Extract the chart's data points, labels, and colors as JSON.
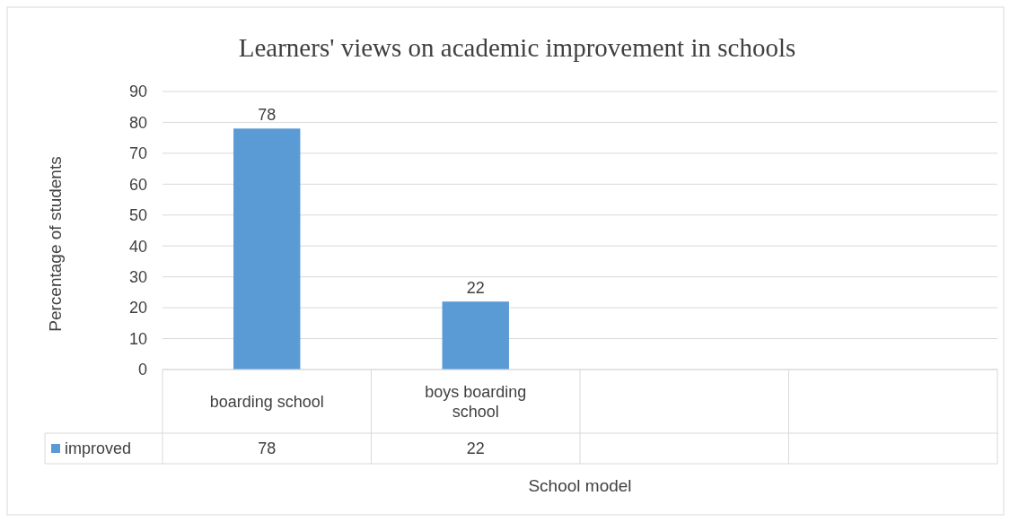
{
  "chart_data": {
    "type": "bar",
    "title": "Learners' views on academic improvement in schools",
    "xlabel": "School model",
    "ylabel": "Percentage of students",
    "categories": [
      "boarding school",
      "boys boarding school",
      null,
      null
    ],
    "series": [
      {
        "name": "improved",
        "color": "#5b9bd5",
        "values": [
          78,
          22,
          null,
          null
        ],
        "value_labels": [
          "78",
          "22",
          null,
          null
        ]
      }
    ],
    "ylim": [
      0,
      90
    ],
    "yticks": [
      0,
      10,
      20,
      30,
      40,
      50,
      60,
      70,
      80,
      90
    ],
    "grid": "y",
    "legend": "bottom",
    "annotations": [
      "78",
      "22"
    ]
  }
}
